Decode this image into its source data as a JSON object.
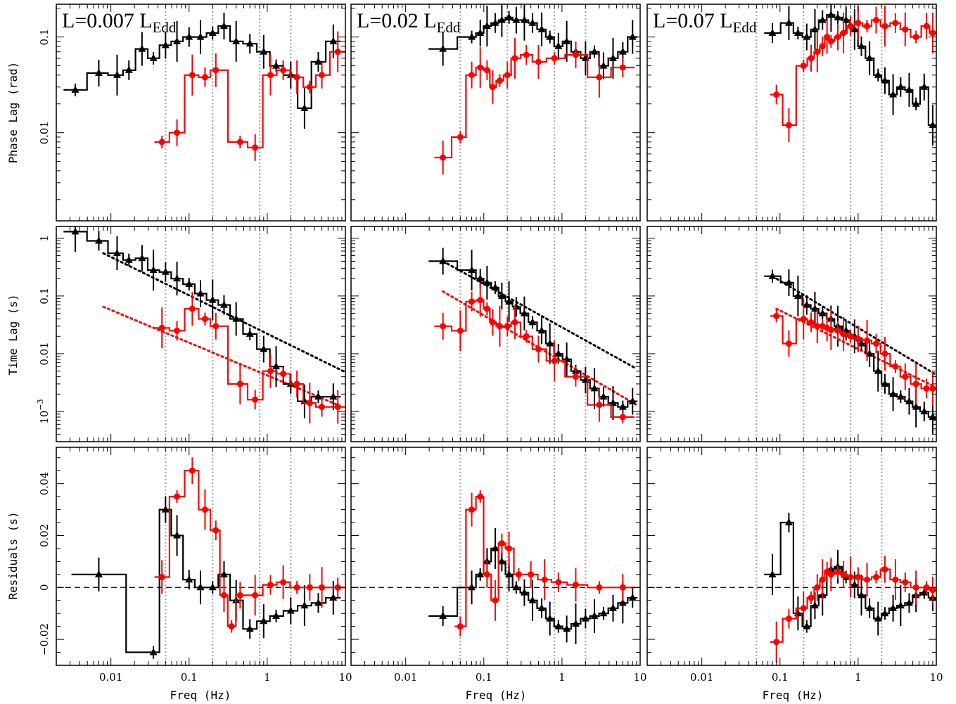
{
  "figure": {
    "x_label": "Freq (Hz)",
    "row_labels": [
      "Phase Lag (rad)",
      "Time Lag (s)",
      "Residuals (s)"
    ],
    "x_ticks": [
      "0.01",
      "0.1",
      "1",
      "10"
    ],
    "x_tick_values": [
      0.01,
      0.1,
      1,
      10
    ],
    "phase_ticks": [
      "0.1",
      "0.01"
    ],
    "time_ticks": [
      "1",
      "0.1",
      "0.01",
      "10"
    ],
    "time_tick_sup": "−3",
    "resid_ticks": [
      "0.04",
      "0.02",
      "0",
      "−0.02"
    ],
    "colors": {
      "black_series": "#000000",
      "red_series": "#ff0000",
      "freq_markers": "#aaaaaa"
    },
    "marker_frequencies_hz": [
      0.05,
      0.2,
      0.8,
      2.0
    ]
  },
  "chart_data": [
    {
      "type": "line",
      "panel": "phase-lag",
      "title_main": "L=0.007 L",
      "title_sub": "Edd",
      "xlim": [
        0.002,
        10
      ],
      "ylim": [
        0.0012,
        0.22
      ],
      "x_scale": "log",
      "y_scale": "log",
      "series": [
        {
          "color": "black",
          "marker": "triangle",
          "x": [
            0.0035,
            0.007,
            0.012,
            0.017,
            0.025,
            0.035,
            0.05,
            0.07,
            0.1,
            0.14,
            0.2,
            0.28,
            0.4,
            0.6,
            0.9,
            1.3,
            2.0,
            3.0,
            4.5,
            7.0
          ],
          "y": [
            0.028,
            0.042,
            0.04,
            0.045,
            0.075,
            0.06,
            0.082,
            0.09,
            0.1,
            0.1,
            0.11,
            0.13,
            0.09,
            0.085,
            0.07,
            0.05,
            0.04,
            0.018,
            0.055,
            0.09
          ]
        },
        {
          "color": "red",
          "marker": "circle",
          "x": [
            0.045,
            0.07,
            0.11,
            0.16,
            0.22,
            0.45,
            0.7,
            1.1,
            1.6,
            2.4,
            3.5,
            5.0,
            8.0
          ],
          "y": [
            0.008,
            0.01,
            0.04,
            0.038,
            0.045,
            0.008,
            0.007,
            0.04,
            0.045,
            0.038,
            0.03,
            0.04,
            0.07
          ]
        }
      ]
    },
    {
      "type": "line",
      "panel": "phase-lag",
      "title_main": "L=0.02 L",
      "title_sub": "Edd",
      "xlim": [
        0.002,
        10
      ],
      "ylim": [
        0.0012,
        0.22
      ],
      "x_scale": "log",
      "y_scale": "log",
      "series": [
        {
          "color": "black",
          "marker": "triangle",
          "x": [
            0.03,
            0.07,
            0.09,
            0.11,
            0.14,
            0.17,
            0.21,
            0.26,
            0.33,
            0.42,
            0.55,
            0.7,
            0.9,
            1.15,
            1.5,
            2.0,
            2.6,
            3.4,
            4.5,
            6.0,
            8.0
          ],
          "y": [
            0.075,
            0.1,
            0.11,
            0.13,
            0.14,
            0.15,
            0.16,
            0.15,
            0.15,
            0.14,
            0.12,
            0.1,
            0.08,
            0.09,
            0.07,
            0.06,
            0.07,
            0.05,
            0.06,
            0.07,
            0.1
          ]
        },
        {
          "color": "red",
          "marker": "circle",
          "x": [
            0.03,
            0.05,
            0.07,
            0.09,
            0.11,
            0.13,
            0.16,
            0.2,
            0.25,
            0.35,
            0.5,
            0.8,
            1.5,
            3.0,
            6.0
          ],
          "y": [
            0.0055,
            0.009,
            0.04,
            0.048,
            0.045,
            0.03,
            0.035,
            0.04,
            0.06,
            0.065,
            0.055,
            0.06,
            0.065,
            0.038,
            0.048
          ]
        }
      ]
    },
    {
      "type": "line",
      "panel": "phase-lag",
      "title_main": "L=0.07 L",
      "title_sub": "Edd",
      "xlim": [
        0.002,
        10
      ],
      "ylim": [
        0.0012,
        0.22
      ],
      "x_scale": "log",
      "y_scale": "log",
      "series": [
        {
          "color": "black",
          "marker": "triangle",
          "x": [
            0.08,
            0.13,
            0.17,
            0.22,
            0.28,
            0.35,
            0.45,
            0.55,
            0.7,
            0.9,
            1.1,
            1.4,
            1.8,
            2.2,
            2.8,
            3.5,
            4.5,
            5.5,
            7.0,
            9.0
          ],
          "y": [
            0.11,
            0.14,
            0.11,
            0.1,
            0.12,
            0.15,
            0.17,
            0.16,
            0.15,
            0.12,
            0.08,
            0.06,
            0.04,
            0.035,
            0.025,
            0.03,
            0.028,
            0.02,
            0.03,
            0.012
          ]
        },
        {
          "color": "red",
          "marker": "circle",
          "x": [
            0.09,
            0.13,
            0.2,
            0.25,
            0.3,
            0.35,
            0.4,
            0.45,
            0.55,
            0.65,
            0.8,
            1.0,
            1.3,
            1.7,
            2.2,
            3.0,
            4.0,
            5.5,
            7.5,
            9.0
          ],
          "y": [
            0.025,
            0.012,
            0.05,
            0.06,
            0.07,
            0.08,
            0.1,
            0.09,
            0.1,
            0.11,
            0.13,
            0.14,
            0.13,
            0.15,
            0.13,
            0.14,
            0.12,
            0.1,
            0.13,
            0.11
          ]
        }
      ]
    },
    {
      "type": "line",
      "panel": "time-lag",
      "xlim": [
        0.002,
        10
      ],
      "ylim": [
        0.0003,
        1.6
      ],
      "x_scale": "log",
      "y_scale": "log",
      "series": [
        {
          "color": "black",
          "marker": "triangle",
          "x": [
            0.0035,
            0.007,
            0.012,
            0.017,
            0.025,
            0.035,
            0.05,
            0.07,
            0.1,
            0.14,
            0.2,
            0.28,
            0.4,
            0.6,
            0.9,
            1.3,
            2.0,
            3.0,
            4.5,
            7.0
          ],
          "y": [
            1.3,
            0.9,
            0.55,
            0.42,
            0.45,
            0.28,
            0.26,
            0.2,
            0.16,
            0.11,
            0.085,
            0.07,
            0.04,
            0.022,
            0.012,
            0.006,
            0.003,
            0.0015,
            0.0018,
            0.0018
          ]
        },
        {
          "color": "red",
          "marker": "circle",
          "x": [
            0.045,
            0.07,
            0.11,
            0.16,
            0.22,
            0.45,
            0.7,
            1.1,
            1.6,
            2.4,
            3.5,
            5.0,
            8.0
          ],
          "y": [
            0.028,
            0.025,
            0.06,
            0.04,
            0.03,
            0.003,
            0.0016,
            0.005,
            0.0045,
            0.003,
            0.0014,
            0.0012,
            0.0012
          ]
        }
      ],
      "fits": [
        {
          "color": "black",
          "x": [
            0.008,
            10
          ],
          "y": [
            0.55,
            0.0048
          ]
        },
        {
          "color": "red",
          "x": [
            0.008,
            8
          ],
          "y": [
            0.065,
            0.0013
          ]
        }
      ]
    },
    {
      "type": "line",
      "panel": "time-lag",
      "xlim": [
        0.002,
        10
      ],
      "ylim": [
        0.0003,
        1.6
      ],
      "x_scale": "log",
      "y_scale": "log",
      "series": [
        {
          "color": "black",
          "marker": "triangle",
          "x": [
            0.03,
            0.07,
            0.09,
            0.11,
            0.14,
            0.17,
            0.21,
            0.26,
            0.33,
            0.42,
            0.55,
            0.7,
            0.9,
            1.15,
            1.5,
            2.0,
            2.6,
            3.4,
            4.5,
            6.0,
            8.0
          ],
          "y": [
            0.4,
            0.28,
            0.2,
            0.17,
            0.14,
            0.1,
            0.08,
            0.065,
            0.05,
            0.035,
            0.025,
            0.015,
            0.01,
            0.008,
            0.005,
            0.0035,
            0.0025,
            0.0018,
            0.0014,
            0.0012,
            0.0015
          ]
        },
        {
          "color": "red",
          "marker": "circle",
          "x": [
            0.03,
            0.05,
            0.07,
            0.09,
            0.11,
            0.13,
            0.16,
            0.2,
            0.25,
            0.35,
            0.5,
            0.8,
            1.5,
            3.0,
            6.0
          ],
          "y": [
            0.03,
            0.025,
            0.08,
            0.085,
            0.06,
            0.035,
            0.03,
            0.03,
            0.035,
            0.02,
            0.012,
            0.0075,
            0.004,
            0.0013,
            0.0008
          ]
        }
      ],
      "fits": [
        {
          "color": "black",
          "x": [
            0.03,
            9
          ],
          "y": [
            0.4,
            0.0055
          ]
        },
        {
          "color": "red",
          "x": [
            0.03,
            9
          ],
          "y": [
            0.12,
            0.0013
          ]
        }
      ]
    },
    {
      "type": "line",
      "panel": "time-lag",
      "xlim": [
        0.002,
        10
      ],
      "ylim": [
        0.0003,
        1.6
      ],
      "x_scale": "log",
      "y_scale": "log",
      "series": [
        {
          "color": "black",
          "marker": "triangle",
          "x": [
            0.08,
            0.13,
            0.17,
            0.22,
            0.28,
            0.35,
            0.45,
            0.55,
            0.7,
            0.9,
            1.1,
            1.4,
            1.8,
            2.2,
            2.8,
            3.5,
            4.5,
            5.5,
            7.0,
            9.0
          ],
          "y": [
            0.22,
            0.17,
            0.1,
            0.07,
            0.06,
            0.05,
            0.04,
            0.03,
            0.025,
            0.02,
            0.015,
            0.01,
            0.005,
            0.003,
            0.002,
            0.0018,
            0.0015,
            0.0012,
            0.001,
            0.0008
          ]
        },
        {
          "color": "red",
          "marker": "circle",
          "x": [
            0.09,
            0.13,
            0.2,
            0.25,
            0.3,
            0.35,
            0.4,
            0.45,
            0.55,
            0.65,
            0.8,
            1.0,
            1.3,
            1.7,
            2.2,
            3.0,
            4.0,
            5.5,
            7.5,
            9.0
          ],
          "y": [
            0.045,
            0.015,
            0.04,
            0.035,
            0.03,
            0.03,
            0.028,
            0.026,
            0.025,
            0.022,
            0.02,
            0.018,
            0.017,
            0.015,
            0.01,
            0.006,
            0.004,
            0.003,
            0.0025,
            0.0025
          ]
        }
      ],
      "fits": [
        {
          "color": "black",
          "x": [
            0.08,
            9.5
          ],
          "y": [
            0.22,
            0.0045
          ]
        },
        {
          "color": "red",
          "x": [
            0.09,
            9.5
          ],
          "y": [
            0.06,
            0.0027
          ]
        }
      ]
    },
    {
      "type": "line",
      "panel": "residuals",
      "xlim": [
        0.002,
        10
      ],
      "ylim": [
        -0.03,
        0.054
      ],
      "x_scale": "log",
      "y_scale": "linear",
      "series": [
        {
          "color": "black",
          "marker": "triangle",
          "x": [
            0.007,
            0.035,
            0.05,
            0.07,
            0.1,
            0.14,
            0.2,
            0.28,
            0.4,
            0.6,
            0.9,
            1.3,
            2.0,
            3.0,
            4.5,
            7.0
          ],
          "y": [
            0.005,
            -0.025,
            0.03,
            0.02,
            0.003,
            0.0,
            0.0,
            0.005,
            -0.005,
            -0.016,
            -0.013,
            -0.011,
            -0.009,
            -0.007,
            -0.006,
            -0.004
          ]
        },
        {
          "color": "red",
          "marker": "circle",
          "x": [
            0.045,
            0.07,
            0.11,
            0.16,
            0.22,
            0.28,
            0.35,
            0.45,
            0.7,
            1.1,
            1.6,
            2.4,
            3.5,
            5.0,
            8.0
          ],
          "y": [
            0.004,
            0.035,
            0.045,
            0.03,
            0.022,
            -0.003,
            -0.015,
            -0.003,
            -0.003,
            0.001,
            0.002,
            0.0,
            0.0,
            0.0,
            0.0
          ]
        }
      ]
    },
    {
      "type": "line",
      "panel": "residuals",
      "xlim": [
        0.002,
        10
      ],
      "ylim": [
        -0.03,
        0.054
      ],
      "x_scale": "log",
      "y_scale": "linear",
      "series": [
        {
          "color": "black",
          "marker": "triangle",
          "x": [
            0.03,
            0.07,
            0.09,
            0.11,
            0.14,
            0.17,
            0.21,
            0.26,
            0.33,
            0.42,
            0.55,
            0.7,
            0.9,
            1.15,
            1.5,
            2.0,
            2.6,
            3.4,
            4.5,
            6.0,
            8.0
          ],
          "y": [
            -0.011,
            0.0,
            0.005,
            0.01,
            0.015,
            0.01,
            0.005,
            0.0,
            -0.002,
            -0.005,
            -0.008,
            -0.012,
            -0.015,
            -0.016,
            -0.014,
            -0.012,
            -0.011,
            -0.01,
            -0.008,
            -0.006,
            -0.004
          ]
        },
        {
          "color": "red",
          "marker": "circle",
          "x": [
            0.05,
            0.07,
            0.09,
            0.11,
            0.14,
            0.17,
            0.21,
            0.28,
            0.4,
            0.6,
            0.9,
            1.5,
            3.0,
            6.0
          ],
          "y": [
            -0.015,
            0.03,
            0.035,
            0.005,
            -0.005,
            0.017,
            0.015,
            0.005,
            0.005,
            0.003,
            0.002,
            0.001,
            0.0,
            0.0
          ]
        }
      ]
    },
    {
      "type": "line",
      "panel": "residuals",
      "xlim": [
        0.002,
        10
      ],
      "ylim": [
        -0.03,
        0.054
      ],
      "x_scale": "log",
      "y_scale": "linear",
      "series": [
        {
          "color": "black",
          "marker": "triangle",
          "x": [
            0.08,
            0.13,
            0.17,
            0.22,
            0.28,
            0.35,
            0.45,
            0.55,
            0.7,
            0.9,
            1.1,
            1.4,
            1.8,
            2.2,
            2.8,
            3.5,
            4.5,
            5.5,
            7.0,
            9.0
          ],
          "y": [
            0.005,
            0.025,
            -0.01,
            -0.015,
            -0.007,
            -0.003,
            0.007,
            0.008,
            0.004,
            0.001,
            -0.003,
            -0.008,
            -0.012,
            -0.01,
            -0.008,
            -0.007,
            -0.006,
            -0.003,
            -0.002,
            -0.004
          ]
        },
        {
          "color": "red",
          "marker": "circle",
          "x": [
            0.09,
            0.13,
            0.2,
            0.25,
            0.3,
            0.35,
            0.4,
            0.45,
            0.55,
            0.65,
            0.8,
            1.0,
            1.3,
            1.7,
            2.2,
            3.0,
            4.0,
            5.5,
            7.5,
            9.0
          ],
          "y": [
            -0.021,
            -0.012,
            -0.008,
            -0.004,
            0.0,
            0.003,
            0.006,
            0.005,
            0.006,
            0.005,
            0.004,
            0.004,
            0.003,
            0.004,
            0.007,
            0.003,
            0.002,
            0.0,
            0.0,
            -0.001
          ]
        }
      ]
    }
  ]
}
